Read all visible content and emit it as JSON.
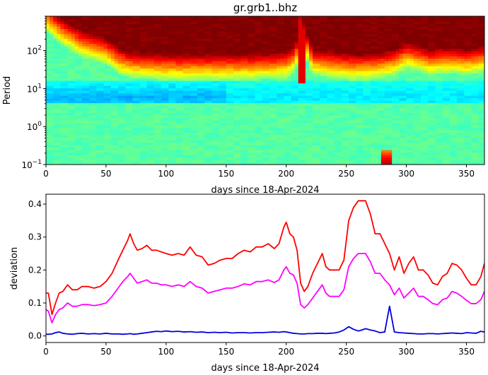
{
  "chart_data": [
    {
      "type": "heatmap",
      "title": "gr.grb1..bhz",
      "xlabel": "days since 18-Apr-2024",
      "ylabel": "Period",
      "xlim": [
        0,
        365
      ],
      "ylim": [
        0.1,
        800
      ],
      "yscale": "log",
      "xticks": [
        0,
        50,
        100,
        150,
        200,
        250,
        300,
        350
      ],
      "yticks": [
        {
          "value": 0.1,
          "base": "10",
          "exp": "−1"
        },
        {
          "value": 1,
          "base": "10",
          "exp": "0"
        },
        {
          "value": 10,
          "base": "10",
          "exp": "1"
        },
        {
          "value": 100,
          "base": "10",
          "exp": "2"
        }
      ],
      "colormap": "jet",
      "color_stops": [
        "#00007f",
        "#0000ff",
        "#0080ff",
        "#00ffff",
        "#7dff7a",
        "#ffff00",
        "#ff8000",
        "#ff0000",
        "#7f0000"
      ],
      "features": {
        "saturation_boundary_period": {
          "days": [
            0,
            10,
            30,
            50,
            60,
            70,
            100,
            130,
            160,
            190,
            200,
            208,
            212,
            216,
            222,
            240,
            255,
            262,
            275,
            290,
            300,
            310,
            320,
            330,
            340,
            350,
            365
          ],
          "period": [
            600,
            300,
            120,
            80,
            45,
            35,
            30,
            30,
            30,
            32,
            35,
            50,
            400,
            120,
            40,
            35,
            30,
            30,
            32,
            40,
            60,
            50,
            40,
            45,
            45,
            40,
            50
          ]
        },
        "microseism_band_period": [
          4,
          16
        ],
        "spike_day": 284
      }
    },
    {
      "type": "line",
      "title": "",
      "xlabel": "days since 18-Apr-2024",
      "ylabel": "deviation",
      "xlim": [
        0,
        365
      ],
      "ylim": [
        -0.02,
        0.43
      ],
      "xticks": [
        0,
        50,
        100,
        150,
        200,
        250,
        300,
        350
      ],
      "yticks": [
        "0.0",
        "0.1",
        "0.2",
        "0.3",
        "0.4"
      ],
      "x": [
        0,
        2,
        5,
        8,
        11,
        14,
        18,
        22,
        26,
        30,
        35,
        40,
        45,
        50,
        55,
        60,
        64,
        68,
        70,
        73,
        76,
        80,
        84,
        88,
        92,
        96,
        100,
        105,
        110,
        115,
        120,
        125,
        130,
        135,
        140,
        145,
        150,
        155,
        160,
        165,
        170,
        175,
        180,
        185,
        190,
        194,
        198,
        200,
        203,
        206,
        209,
        212,
        215,
        218,
        222,
        226,
        230,
        233,
        236,
        240,
        244,
        248,
        252,
        256,
        260,
        263,
        266,
        270,
        274,
        278,
        282,
        286,
        290,
        294,
        298,
        302,
        306,
        310,
        314,
        318,
        322,
        326,
        330,
        334,
        338,
        342,
        346,
        350,
        354,
        358,
        362,
        365
      ],
      "series": [
        {
          "color": "#ff0000",
          "values": [
            0.13,
            0.13,
            0.065,
            0.1,
            0.13,
            0.135,
            0.155,
            0.14,
            0.14,
            0.15,
            0.15,
            0.145,
            0.15,
            0.165,
            0.19,
            0.23,
            0.26,
            0.29,
            0.31,
            0.28,
            0.26,
            0.265,
            0.275,
            0.26,
            0.26,
            0.255,
            0.25,
            0.245,
            0.25,
            0.245,
            0.27,
            0.245,
            0.24,
            0.215,
            0.22,
            0.23,
            0.235,
            0.235,
            0.25,
            0.26,
            0.255,
            0.27,
            0.27,
            0.28,
            0.265,
            0.28,
            0.33,
            0.345,
            0.31,
            0.3,
            0.26,
            0.16,
            0.135,
            0.15,
            0.19,
            0.22,
            0.25,
            0.21,
            0.2,
            0.2,
            0.2,
            0.23,
            0.35,
            0.39,
            0.41,
            0.41,
            0.41,
            0.37,
            0.31,
            0.31,
            0.28,
            0.25,
            0.2,
            0.24,
            0.19,
            0.22,
            0.24,
            0.2,
            0.2,
            0.185,
            0.16,
            0.155,
            0.18,
            0.19,
            0.22,
            0.215,
            0.2,
            0.175,
            0.155,
            0.155,
            0.18,
            0.22
          ]
        },
        {
          "color": "#ff00ff",
          "values": [
            0.08,
            0.075,
            0.04,
            0.065,
            0.08,
            0.085,
            0.1,
            0.09,
            0.09,
            0.095,
            0.095,
            0.092,
            0.095,
            0.1,
            0.12,
            0.145,
            0.165,
            0.18,
            0.19,
            0.175,
            0.16,
            0.165,
            0.17,
            0.16,
            0.16,
            0.155,
            0.155,
            0.15,
            0.155,
            0.15,
            0.165,
            0.15,
            0.145,
            0.13,
            0.135,
            0.14,
            0.145,
            0.145,
            0.15,
            0.158,
            0.155,
            0.165,
            0.165,
            0.17,
            0.162,
            0.17,
            0.2,
            0.21,
            0.19,
            0.185,
            0.16,
            0.095,
            0.085,
            0.095,
            0.115,
            0.135,
            0.155,
            0.13,
            0.12,
            0.12,
            0.12,
            0.14,
            0.21,
            0.235,
            0.25,
            0.25,
            0.25,
            0.225,
            0.19,
            0.19,
            0.17,
            0.155,
            0.125,
            0.145,
            0.115,
            0.13,
            0.145,
            0.12,
            0.12,
            0.11,
            0.098,
            0.095,
            0.11,
            0.115,
            0.135,
            0.13,
            0.12,
            0.108,
            0.098,
            0.098,
            0.11,
            0.135
          ]
        },
        {
          "color": "#0000dd",
          "values": [
            0.005,
            0.005,
            0.006,
            0.01,
            0.012,
            0.008,
            0.006,
            0.005,
            0.007,
            0.008,
            0.006,
            0.007,
            0.006,
            0.008,
            0.006,
            0.006,
            0.005,
            0.006,
            0.007,
            0.005,
            0.006,
            0.008,
            0.01,
            0.012,
            0.014,
            0.013,
            0.015,
            0.013,
            0.014,
            0.012,
            0.013,
            0.011,
            0.012,
            0.01,
            0.011,
            0.01,
            0.011,
            0.009,
            0.01,
            0.01,
            0.009,
            0.01,
            0.01,
            0.011,
            0.012,
            0.011,
            0.013,
            0.012,
            0.01,
            0.008,
            0.007,
            0.006,
            0.006,
            0.007,
            0.007,
            0.008,
            0.008,
            0.007,
            0.008,
            0.009,
            0.012,
            0.018,
            0.028,
            0.02,
            0.015,
            0.018,
            0.022,
            0.018,
            0.015,
            0.01,
            0.012,
            0.09,
            0.012,
            0.01,
            0.009,
            0.008,
            0.007,
            0.006,
            0.006,
            0.007,
            0.007,
            0.006,
            0.007,
            0.008,
            0.009,
            0.008,
            0.007,
            0.01,
            0.009,
            0.008,
            0.014,
            0.012
          ]
        }
      ]
    }
  ]
}
